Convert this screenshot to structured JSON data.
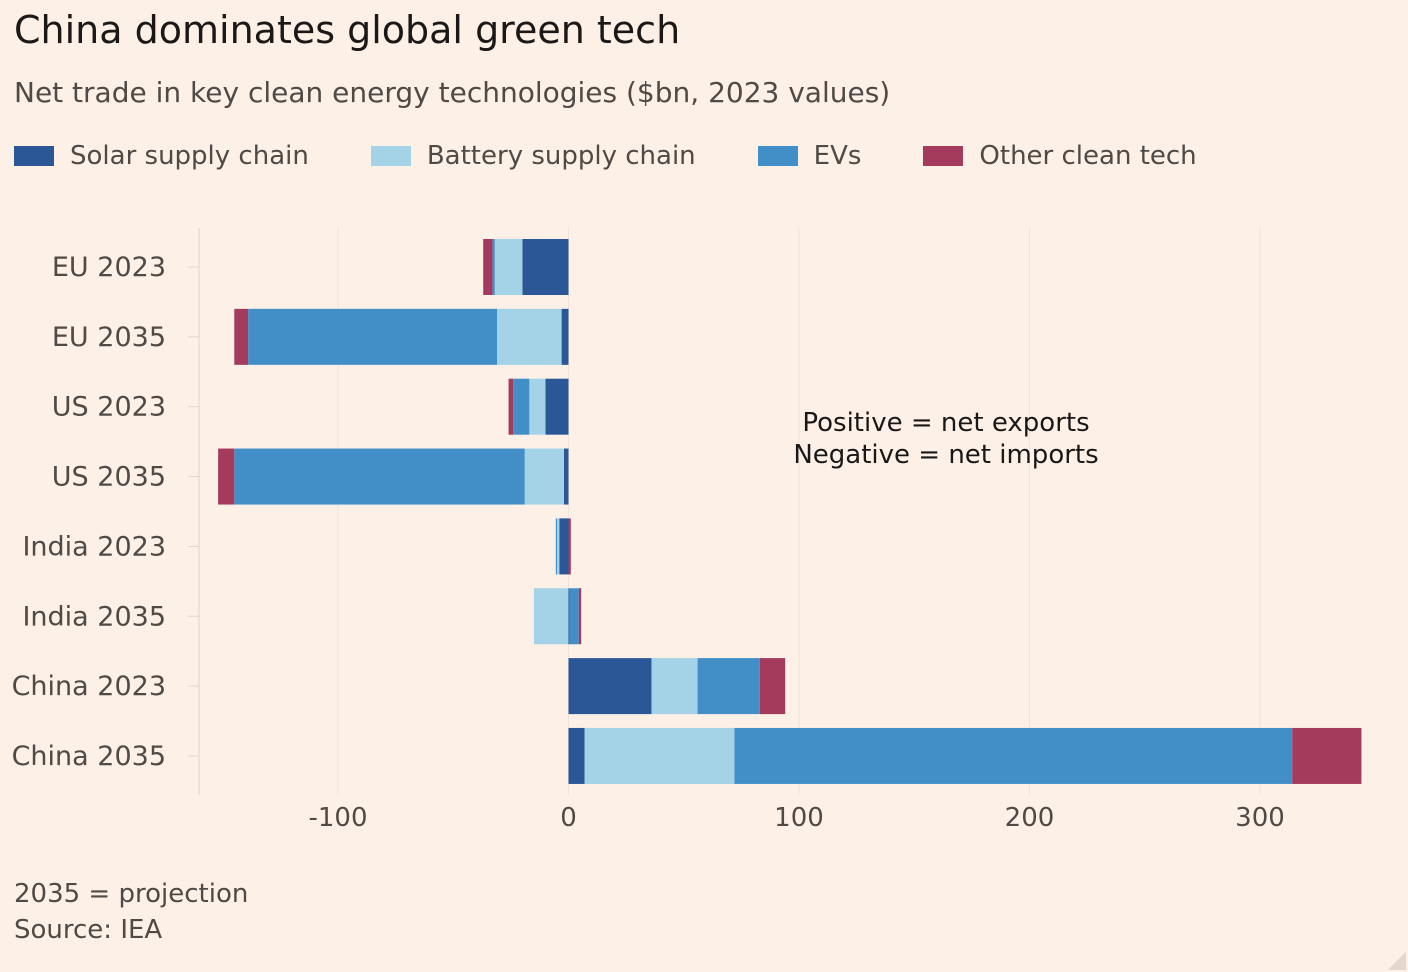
{
  "header": {
    "title": "China dominates global green tech",
    "subtitle": "Net trade in key clean energy technologies ($bn, 2023 values)"
  },
  "footer": {
    "note": "2035 = projection",
    "source": "Source: IEA"
  },
  "chart_data": {
    "type": "bar",
    "orientation": "horizontal",
    "stacked": true,
    "categories": [
      "EU 2023",
      "EU 2035",
      "US 2023",
      "US 2035",
      "India 2023",
      "India 2035",
      "China 2023",
      "China 2035"
    ],
    "series": [
      {
        "name": "Solar supply chain",
        "color": "#2b5797",
        "values": [
          -20,
          -3,
          -10,
          -2,
          -4,
          0.5,
          36,
          7
        ]
      },
      {
        "name": "Battery supply chain",
        "color": "#a4d3e8",
        "values": [
          -12,
          -28,
          -7,
          -17,
          -1,
          -15,
          20,
          65
        ]
      },
      {
        "name": "EVs",
        "color": "#428fc8",
        "values": [
          -1,
          -108,
          -7,
          -126,
          -0.5,
          4,
          27,
          242
        ]
      },
      {
        "name": "Other clean tech",
        "color": "#a43b5d",
        "values": [
          -4,
          -6,
          -2,
          -7,
          1,
          1,
          11,
          30
        ]
      }
    ],
    "xlim": [
      -160,
      345
    ],
    "xticks": [
      "-100",
      "0",
      "100",
      "200",
      "300"
    ],
    "xtick_values": [
      -100,
      0,
      100,
      200,
      300
    ],
    "annotation": [
      "Positive = net exports",
      "Negative = net imports"
    ],
    "grid": true,
    "legend_position": "top"
  }
}
